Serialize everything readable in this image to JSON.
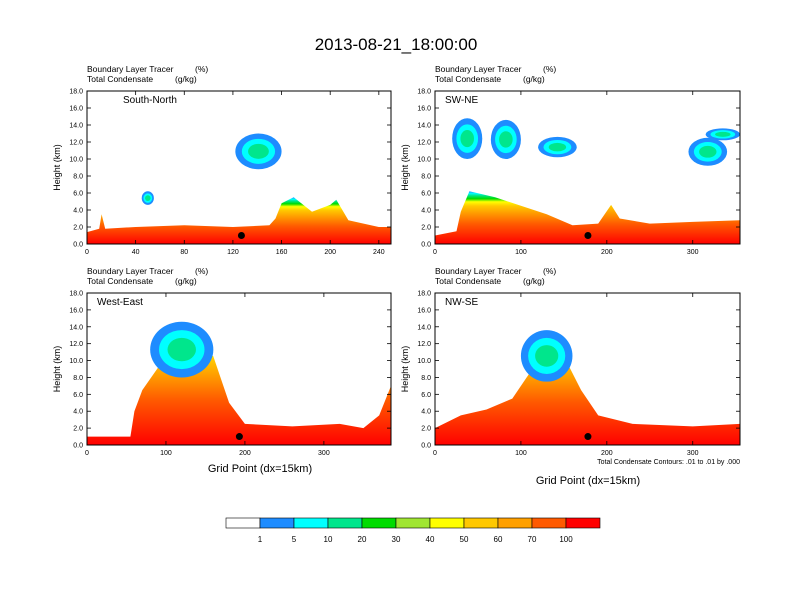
{
  "title": "2013-08-21_18:00:00",
  "panel_header": {
    "line1": "Boundary Layer Tracer",
    "unit1": "(%)",
    "line2": "Total Condensate",
    "unit2": "(g/kg)"
  },
  "ylabel": "Height (km)",
  "xlabel": "Grid Point (dx=15km)",
  "contour_note": "Total Condensate Contours: .01 to .01 by .000",
  "colorbar": {
    "levels": [
      "1",
      "5",
      "10",
      "20",
      "30",
      "40",
      "50",
      "60",
      "70",
      "100"
    ],
    "colors": [
      "#ffffff",
      "#1e8cff",
      "#00ffff",
      "#00e68c",
      "#00dc00",
      "#a0e632",
      "#ffff00",
      "#ffc800",
      "#ffa000",
      "#ff5a00",
      "#ff0000"
    ]
  },
  "chart_data": [
    {
      "type": "heatmap",
      "panel_label": "South-North",
      "xlim": [
        0,
        250
      ],
      "xticks": [
        "0",
        "40",
        "80",
        "120",
        "160",
        "200",
        "240"
      ],
      "ylim": [
        0,
        18
      ],
      "yticks": [
        "0.0",
        "2.0",
        "4.0",
        "6.0",
        "8.0",
        "10.0",
        "12.0",
        "14.0",
        "16.0",
        "18.0"
      ],
      "tracer_top_km": [
        [
          0,
          1.4
        ],
        [
          10,
          1.8
        ],
        [
          12,
          3.5
        ],
        [
          15,
          1.8
        ],
        [
          40,
          2.0
        ],
        [
          80,
          2.2
        ],
        [
          120,
          2.0
        ],
        [
          150,
          2.2
        ],
        [
          155,
          3.0
        ],
        [
          160,
          4.8
        ],
        [
          170,
          5.5
        ],
        [
          185,
          3.8
        ],
        [
          200,
          4.6
        ],
        [
          205,
          5.2
        ],
        [
          215,
          2.8
        ],
        [
          240,
          2.0
        ],
        [
          250,
          2.0
        ]
      ],
      "cloud_patches": [
        {
          "x0": 122,
          "x1": 160,
          "y0": 8.8,
          "y1": 13.0
        },
        {
          "x0": 45,
          "x1": 55,
          "y0": 4.6,
          "y1": 6.2
        }
      ],
      "marker": {
        "x": 127,
        "y": 1.0
      }
    },
    {
      "type": "heatmap",
      "panel_label": "SW-NE",
      "xlim": [
        0,
        355
      ],
      "xticks": [
        "0",
        "100",
        "200",
        "300"
      ],
      "ylim": [
        0,
        18
      ],
      "yticks": [
        "0.0",
        "2.0",
        "4.0",
        "6.0",
        "8.0",
        "10.0",
        "12.0",
        "14.0",
        "16.0",
        "18.0"
      ],
      "tracer_top_km": [
        [
          0,
          1.0
        ],
        [
          25,
          1.5
        ],
        [
          30,
          3.8
        ],
        [
          40,
          6.2
        ],
        [
          70,
          5.5
        ],
        [
          130,
          3.5
        ],
        [
          160,
          2.2
        ],
        [
          190,
          2.4
        ],
        [
          205,
          4.6
        ],
        [
          215,
          3.0
        ],
        [
          250,
          2.4
        ],
        [
          300,
          2.6
        ],
        [
          355,
          2.8
        ]
      ],
      "cloud_patches": [
        {
          "x0": 20,
          "x1": 55,
          "y0": 10.0,
          "y1": 14.8
        },
        {
          "x0": 65,
          "x1": 100,
          "y0": 10.0,
          "y1": 14.6
        },
        {
          "x0": 120,
          "x1": 165,
          "y0": 10.2,
          "y1": 12.6
        },
        {
          "x0": 295,
          "x1": 340,
          "y0": 9.2,
          "y1": 12.5
        },
        {
          "x0": 315,
          "x1": 355,
          "y0": 12.2,
          "y1": 13.6
        }
      ],
      "marker": {
        "x": 178,
        "y": 1.0
      }
    },
    {
      "type": "heatmap",
      "panel_label": "West-East",
      "xlim": [
        0,
        385
      ],
      "xticks": [
        "0",
        "100",
        "200",
        "300"
      ],
      "ylim": [
        0,
        18
      ],
      "yticks": [
        "0.0",
        "2.0",
        "4.0",
        "6.0",
        "8.0",
        "10.0",
        "12.0",
        "14.0",
        "16.0",
        "18.0"
      ],
      "tracer_top_km": [
        [
          0,
          1.0
        ],
        [
          55,
          1.0
        ],
        [
          60,
          4.0
        ],
        [
          70,
          6.5
        ],
        [
          100,
          10.5
        ],
        [
          120,
          14.0
        ],
        [
          140,
          12.0
        ],
        [
          160,
          10.5
        ],
        [
          180,
          5.0
        ],
        [
          200,
          2.5
        ],
        [
          260,
          2.2
        ],
        [
          320,
          2.5
        ],
        [
          350,
          2.0
        ],
        [
          370,
          3.5
        ],
        [
          385,
          7.0
        ]
      ],
      "cloud_patches": [
        {
          "x0": 80,
          "x1": 160,
          "y0": 8.0,
          "y1": 14.6
        }
      ],
      "marker": {
        "x": 193,
        "y": 1.0
      }
    },
    {
      "type": "heatmap",
      "panel_label": "NW-SE",
      "xlim": [
        0,
        355
      ],
      "xticks": [
        "0",
        "100",
        "200",
        "300"
      ],
      "ylim": [
        0,
        18
      ],
      "yticks": [
        "0.0",
        "2.0",
        "4.0",
        "6.0",
        "8.0",
        "10.0",
        "12.0",
        "14.0",
        "16.0",
        "18.0"
      ],
      "tracer_top_km": [
        [
          0,
          2.0
        ],
        [
          30,
          3.5
        ],
        [
          60,
          4.2
        ],
        [
          90,
          5.5
        ],
        [
          110,
          8.5
        ],
        [
          125,
          13.5
        ],
        [
          140,
          12.5
        ],
        [
          155,
          9.5
        ],
        [
          170,
          6.5
        ],
        [
          190,
          3.5
        ],
        [
          230,
          2.5
        ],
        [
          300,
          2.2
        ],
        [
          355,
          2.5
        ]
      ],
      "cloud_patches": [
        {
          "x0": 100,
          "x1": 160,
          "y0": 7.5,
          "y1": 13.6
        }
      ],
      "marker": {
        "x": 178,
        "y": 1.0
      }
    }
  ]
}
